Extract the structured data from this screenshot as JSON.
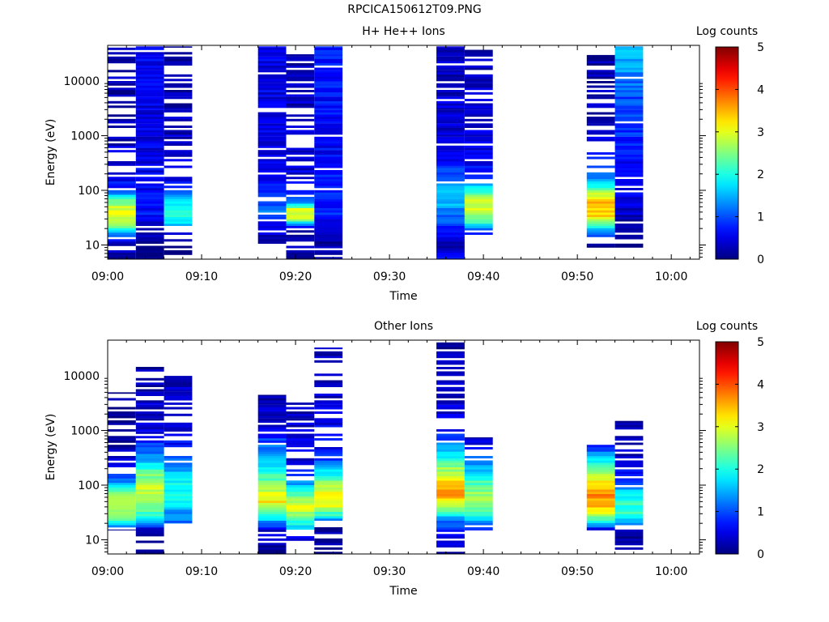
{
  "figure_title": "RPCICA150612T09.PNG",
  "chart_data": [
    {
      "type": "heatmap",
      "title": "H+ He++ Ions",
      "xlabel": "Time",
      "ylabel": "Energy (eV)",
      "yscale": "log",
      "ylim": [
        5.5,
        45000
      ],
      "xlim": [
        "09:00",
        "10:03"
      ],
      "x_ticks": [
        "09:00",
        "09:10",
        "09:20",
        "09:30",
        "09:40",
        "09:50",
        "10:00"
      ],
      "y_ticks": [
        "10",
        "100",
        "1000",
        "10000"
      ],
      "colorbar": {
        "label": "Log counts",
        "range": [
          0,
          5
        ],
        "ticks": [
          "0",
          "1",
          "2",
          "3",
          "4",
          "5"
        ]
      },
      "columns": [
        {
          "start": "09:00",
          "end": "09:03",
          "emin": 5.5,
          "emax": 43000,
          "occupancy": 0.55,
          "profile": [
            [
              6,
              0.1
            ],
            [
              12,
              0.5
            ],
            [
              22,
              2.3
            ],
            [
              30,
              2.9
            ],
            [
              50,
              2.9
            ],
            [
              70,
              2.2
            ],
            [
              100,
              0.9
            ],
            [
              200,
              0.4
            ],
            [
              1000,
              0.3
            ],
            [
              10000,
              0.2
            ],
            [
              43000,
              0.2
            ]
          ]
        },
        {
          "start": "09:03",
          "end": "09:06",
          "emin": 5.5,
          "emax": 43000,
          "occupancy": 0.92,
          "profile": [
            [
              6,
              0.1
            ],
            [
              20,
              0.3
            ],
            [
              40,
              0.7
            ],
            [
              100,
              0.6
            ],
            [
              1000,
              0.5
            ],
            [
              10000,
              0.5
            ],
            [
              43000,
              0.6
            ]
          ]
        },
        {
          "start": "09:06",
          "end": "09:09",
          "emin": 5.5,
          "emax": 43000,
          "occupancy": 0.6,
          "profile": [
            [
              6,
              0.1
            ],
            [
              15,
              0.2
            ],
            [
              25,
              1.7
            ],
            [
              40,
              2.3
            ],
            [
              60,
              1.9
            ],
            [
              90,
              1.2
            ],
            [
              150,
              0.6
            ],
            [
              1000,
              0.3
            ],
            [
              43000,
              0.2
            ]
          ]
        },
        {
          "start": "09:16",
          "end": "09:19",
          "emin": 9,
          "emax": 43000,
          "occupancy": 0.85,
          "profile": [
            [
              9,
              0.2
            ],
            [
              20,
              0.5
            ],
            [
              40,
              1.2
            ],
            [
              60,
              1.0
            ],
            [
              100,
              0.7
            ],
            [
              1000,
              0.5
            ],
            [
              10000,
              0.5
            ],
            [
              43000,
              0.5
            ]
          ]
        },
        {
          "start": "09:19",
          "end": "09:22",
          "emin": 5.5,
          "emax": 33000,
          "occupancy": 0.6,
          "profile": [
            [
              6,
              0.1
            ],
            [
              20,
              0.4
            ],
            [
              30,
              2.8
            ],
            [
              45,
              3.0
            ],
            [
              60,
              1.3
            ],
            [
              100,
              0.5
            ],
            [
              1000,
              0.3
            ],
            [
              33000,
              0.3
            ]
          ]
        },
        {
          "start": "09:22",
          "end": "09:25",
          "emin": 5.5,
          "emax": 43000,
          "occupancy": 0.95,
          "profile": [
            [
              6,
              0.1
            ],
            [
              20,
              0.3
            ],
            [
              40,
              0.8
            ],
            [
              100,
              0.7
            ],
            [
              1000,
              0.6
            ],
            [
              10000,
              0.7
            ],
            [
              43000,
              0.8
            ]
          ]
        },
        {
          "start": "09:35",
          "end": "09:38",
          "emin": 5.5,
          "emax": 43000,
          "occupancy": 0.95,
          "profile": [
            [
              6,
              0.6
            ],
            [
              10,
              0.3
            ],
            [
              20,
              0.8
            ],
            [
              50,
              1.4
            ],
            [
              80,
              1.7
            ],
            [
              150,
              1.1
            ],
            [
              400,
              0.6
            ],
            [
              1000,
              0.4
            ],
            [
              43000,
              0.3
            ]
          ]
        },
        {
          "start": "09:38",
          "end": "09:41",
          "emin": 15,
          "emax": 43000,
          "occupancy": 0.7,
          "profile": [
            [
              15,
              0.4
            ],
            [
              25,
              2.0
            ],
            [
              40,
              2.8
            ],
            [
              60,
              2.9
            ],
            [
              90,
              2.4
            ],
            [
              150,
              0.9
            ],
            [
              400,
              0.5
            ],
            [
              43000,
              0.3
            ]
          ]
        },
        {
          "start": "09:51",
          "end": "09:54",
          "emin": 9,
          "emax": 30000,
          "occupancy": 0.55,
          "profile": [
            [
              9,
              0.1
            ],
            [
              20,
              1.8
            ],
            [
              35,
              3.3
            ],
            [
              55,
              3.5
            ],
            [
              90,
              2.9
            ],
            [
              150,
              1.4
            ],
            [
              400,
              0.6
            ],
            [
              2000,
              0.3
            ],
            [
              30000,
              0.2
            ]
          ]
        },
        {
          "start": "09:54",
          "end": "09:57",
          "emin": 9,
          "emax": 43000,
          "occupancy": 0.9,
          "profile": [
            [
              9,
              0.1
            ],
            [
              30,
              0.3
            ],
            [
              100,
              0.6
            ],
            [
              300,
              0.6
            ],
            [
              1000,
              0.8
            ],
            [
              5000,
              1.0
            ],
            [
              20000,
              1.4
            ],
            [
              43000,
              1.7
            ]
          ]
        }
      ]
    },
    {
      "type": "heatmap",
      "title": "Other Ions",
      "xlabel": "Time",
      "ylabel": "Energy (eV)",
      "yscale": "log",
      "ylim": [
        5.5,
        45000
      ],
      "xlim": [
        "09:00",
        "10:03"
      ],
      "x_ticks": [
        "09:00",
        "09:10",
        "09:20",
        "09:30",
        "09:40",
        "09:50",
        "10:00"
      ],
      "y_ticks": [
        "10",
        "100",
        "1000",
        "10000"
      ],
      "colorbar": {
        "label": "Log counts",
        "range": [
          0,
          5
        ],
        "ticks": [
          "0",
          "1",
          "2",
          "3",
          "4",
          "5"
        ]
      },
      "columns": [
        {
          "start": "09:00",
          "end": "09:03",
          "emin": 15,
          "emax": 5000,
          "occupancy": 0.55,
          "profile": [
            [
              15,
              0.2
            ],
            [
              20,
              1.8
            ],
            [
              30,
              2.6
            ],
            [
              50,
              2.9
            ],
            [
              80,
              2.3
            ],
            [
              130,
              1.0
            ],
            [
              400,
              0.2
            ],
            [
              5000,
              0.1
            ]
          ]
        },
        {
          "start": "09:03",
          "end": "09:06",
          "emin": 5.5,
          "emax": 15000,
          "occupancy": 0.75,
          "profile": [
            [
              6,
              0.1
            ],
            [
              15,
              0.3
            ],
            [
              22,
              1.6
            ],
            [
              40,
              2.6
            ],
            [
              80,
              2.9
            ],
            [
              150,
              2.5
            ],
            [
              300,
              1.5
            ],
            [
              900,
              0.4
            ],
            [
              15000,
              0.2
            ]
          ]
        },
        {
          "start": "09:06",
          "end": "09:09",
          "emin": 20,
          "emax": 10000,
          "occupancy": 0.55,
          "profile": [
            [
              20,
              1.2
            ],
            [
              40,
              1.6
            ],
            [
              80,
              2.0
            ],
            [
              150,
              1.7
            ],
            [
              280,
              1.2
            ],
            [
              1000,
              0.3
            ],
            [
              10000,
              0.3
            ]
          ]
        },
        {
          "start": "09:16",
          "end": "09:19",
          "emin": 5.5,
          "emax": 4500,
          "occupancy": 0.75,
          "profile": [
            [
              6,
              0.1
            ],
            [
              15,
              0.4
            ],
            [
              25,
              1.8
            ],
            [
              50,
              3.2
            ],
            [
              100,
              2.6
            ],
            [
              200,
              1.8
            ],
            [
              600,
              1.0
            ],
            [
              1000,
              0.5
            ],
            [
              4500,
              0.2
            ]
          ]
        },
        {
          "start": "09:19",
          "end": "09:22",
          "emin": 9,
          "emax": 4000,
          "occupancy": 0.55,
          "profile": [
            [
              9,
              0.1
            ],
            [
              25,
              2.5
            ],
            [
              45,
              3.0
            ],
            [
              70,
              2.3
            ],
            [
              100,
              1.5
            ],
            [
              200,
              0.5
            ],
            [
              4000,
              0.3
            ]
          ]
        },
        {
          "start": "09:22",
          "end": "09:25",
          "emin": 5.5,
          "emax": 33000,
          "occupancy": 0.6,
          "profile": [
            [
              6,
              0.1
            ],
            [
              20,
              0.2
            ],
            [
              28,
              2.0
            ],
            [
              40,
              3.0
            ],
            [
              70,
              3.3
            ],
            [
              120,
              2.4
            ],
            [
              200,
              1.5
            ],
            [
              400,
              0.6
            ],
            [
              33000,
              0.2
            ]
          ]
        },
        {
          "start": "09:35",
          "end": "09:38",
          "emin": 5.5,
          "emax": 42000,
          "occupancy": 0.6,
          "profile": [
            [
              6,
              0.2
            ],
            [
              15,
              0.6
            ],
            [
              25,
              1.5
            ],
            [
              40,
              2.8
            ],
            [
              70,
              3.6
            ],
            [
              120,
              3.3
            ],
            [
              250,
              2.3
            ],
            [
              600,
              1.2
            ],
            [
              1000,
              0.5
            ],
            [
              42000,
              0.2
            ]
          ]
        },
        {
          "start": "09:38",
          "end": "09:41",
          "emin": 15,
          "emax": 750,
          "occupancy": 0.6,
          "profile": [
            [
              15,
              0.6
            ],
            [
              30,
              2.2
            ],
            [
              60,
              2.7
            ],
            [
              120,
              2.2
            ],
            [
              250,
              1.3
            ],
            [
              750,
              0.3
            ]
          ]
        },
        {
          "start": "09:51",
          "end": "09:54",
          "emin": 15,
          "emax": 550,
          "occupancy": 0.65,
          "profile": [
            [
              15,
              0.4
            ],
            [
              25,
              2.5
            ],
            [
              40,
              3.4
            ],
            [
              70,
              3.7
            ],
            [
              120,
              3.2
            ],
            [
              250,
              2.0
            ],
            [
              550,
              0.6
            ]
          ]
        },
        {
          "start": "09:54",
          "end": "09:57",
          "emin": 5.5,
          "emax": 1500,
          "occupancy": 0.55,
          "profile": [
            [
              6,
              0.1
            ],
            [
              15,
              0.1
            ],
            [
              25,
              2.0
            ],
            [
              50,
              2.2
            ],
            [
              100,
              1.2
            ],
            [
              250,
              0.4
            ],
            [
              1500,
              0.2
            ]
          ]
        }
      ]
    }
  ]
}
